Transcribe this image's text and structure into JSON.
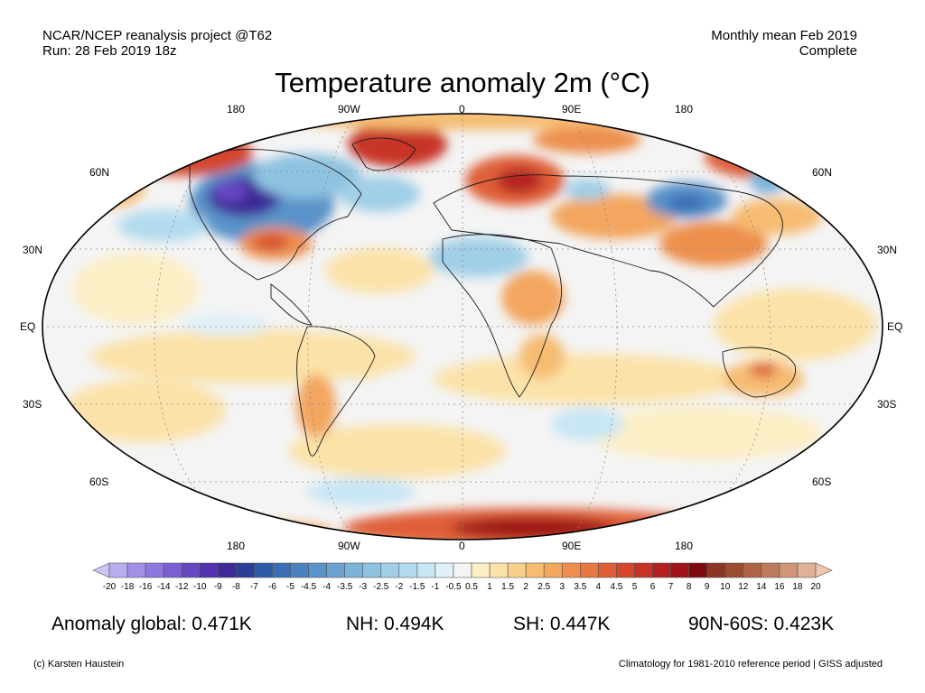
{
  "header": {
    "left_line1": "NCAR/NCEP reanalysis project @T62",
    "left_line2": "Run: 28 Feb 2019 18z",
    "right_line1": "Monthly mean Feb 2019",
    "right_line2": "Complete"
  },
  "title": "Temperature anomaly 2m (°C)",
  "map": {
    "lon_labels_top": [
      "180",
      "90W",
      "0",
      "90E",
      "180"
    ],
    "lon_labels_bottom": [
      "180",
      "90W",
      "0",
      "90E",
      "180"
    ],
    "lat_labels_left": [
      "60N",
      "30N",
      "EQ",
      "30S",
      "60S"
    ],
    "lat_labels_right": [
      "60N",
      "30N",
      "EQ",
      "30S",
      "60S"
    ]
  },
  "colorbar": {
    "labels": [
      "-20",
      "-18",
      "-16",
      "-14",
      "-12",
      "-10",
      "-9",
      "-8",
      "-7",
      "-6",
      "-5",
      "-4.5",
      "-4",
      "-3.5",
      "-3",
      "-2.5",
      "-2",
      "-1.5",
      "-1",
      "-0.5",
      "0.5",
      "1",
      "1.5",
      "2",
      "2.5",
      "3",
      "3.5",
      "4",
      "4.5",
      "5",
      "6",
      "7",
      "8",
      "9",
      "10",
      "12",
      "14",
      "16",
      "18",
      "20"
    ],
    "colors": [
      "#ccc4f5",
      "#b9acef",
      "#a28fe6",
      "#8e77de",
      "#7a5fd4",
      "#6647c2",
      "#5232ad",
      "#3d2a96",
      "#2c3d96",
      "#2f5aa8",
      "#3a6fb6",
      "#4a82c0",
      "#5a93c9",
      "#6aa3d1",
      "#7bb3d9",
      "#8dc2e0",
      "#a0cfe7",
      "#b3dbee",
      "#c8e6f4",
      "#dff0f8",
      "#f4f4f4",
      "#fcefc6",
      "#fbe2a8",
      "#f9d08b",
      "#f6bc72",
      "#f3a65e",
      "#ee8f4e",
      "#e87742",
      "#df5f37",
      "#d4472d",
      "#c73426",
      "#b42020",
      "#9e1218",
      "#7e0a10",
      "#8c3520",
      "#9c4c30",
      "#ad6445",
      "#bf7c5c",
      "#d09676",
      "#e0b195",
      "#edc7ad"
    ]
  },
  "stats": {
    "global": "Anomaly global: 0.471K",
    "nh": "NH: 0.494K",
    "sh": "SH: 0.447K",
    "arctic": "90N-60S: 0.423K"
  },
  "footer": {
    "credit": "(c) Karsten Haustein",
    "note": "Climatology for 1981-2010 reference period | GISS adjusted"
  }
}
